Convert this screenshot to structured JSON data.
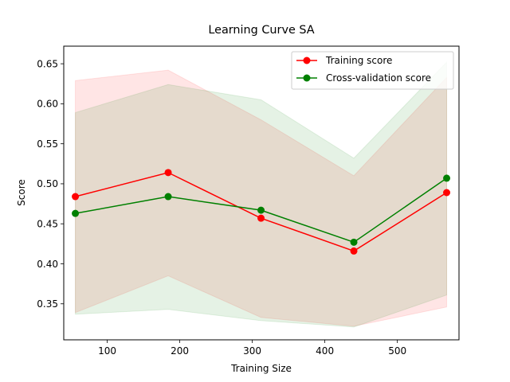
{
  "chart_data": {
    "type": "line",
    "title": "Learning Curve SA",
    "xlabel": "Training Size",
    "ylabel": "Score",
    "xlim": [
      40,
      585
    ],
    "ylim": [
      0.305,
      0.672
    ],
    "x": [
      56,
      184,
      312,
      440,
      568
    ],
    "xticks": [
      100,
      200,
      300,
      400,
      500
    ],
    "yticks": [
      0.35,
      0.4,
      0.45,
      0.5,
      0.55,
      0.6,
      0.65
    ],
    "ytick_labels": [
      "0.35",
      "0.40",
      "0.45",
      "0.50",
      "0.55",
      "0.60",
      "0.65"
    ],
    "grid": false,
    "legend_position": "upper-right",
    "series": [
      {
        "name": "Training score",
        "color": "#ff0000",
        "values": [
          0.484,
          0.514,
          0.457,
          0.416,
          0.489
        ],
        "band_upper": [
          0.629,
          0.642,
          0.58,
          0.51,
          0.633
        ],
        "band_lower": [
          0.339,
          0.385,
          0.333,
          0.322,
          0.346
        ]
      },
      {
        "name": "Cross-validation score",
        "color": "#008000",
        "values": [
          0.463,
          0.484,
          0.467,
          0.427,
          0.507
        ],
        "band_upper": [
          0.589,
          0.624,
          0.605,
          0.532,
          0.652
        ],
        "band_lower": [
          0.337,
          0.343,
          0.329,
          0.321,
          0.361
        ]
      }
    ]
  }
}
